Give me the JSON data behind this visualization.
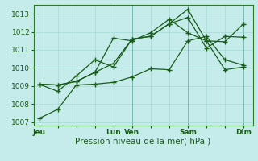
{
  "title": "",
  "xlabel": "Pression niveau de la mer( hPa )",
  "bg_color": "#c5ecea",
  "grid_color": "#a8d8d4",
  "line_color": "#1a5c1a",
  "spine_color": "#2a7a2a",
  "ylim": [
    1006.8,
    1013.5
  ],
  "yticks": [
    1007,
    1008,
    1009,
    1010,
    1011,
    1012,
    1013
  ],
  "xlim": [
    -0.3,
    11.5
  ],
  "xtick_labels": [
    "Jeu",
    "",
    "",
    "",
    "Lun",
    "Ven",
    "",
    "",
    "Sam",
    "",
    "",
    "Dim"
  ],
  "xtick_positions": [
    0,
    1,
    2,
    3,
    4,
    5,
    6,
    7,
    8,
    9,
    10,
    11
  ],
  "vline_positions": [
    4,
    5,
    8,
    11
  ],
  "line1_x": [
    0,
    1,
    2,
    3,
    4,
    5,
    6,
    7,
    8,
    9,
    10,
    11
  ],
  "line1_y": [
    1007.2,
    1007.7,
    1009.05,
    1009.1,
    1009.2,
    1009.5,
    1009.95,
    1009.9,
    1011.5,
    1011.75,
    1010.45,
    1010.15
  ],
  "line2_x": [
    0,
    1,
    2,
    3,
    4,
    5,
    6,
    7,
    8,
    9,
    10,
    11
  ],
  "line2_y": [
    1009.1,
    1008.7,
    1009.55,
    1010.45,
    1010.05,
    1011.6,
    1011.75,
    1012.45,
    1012.8,
    1011.1,
    1011.75,
    1011.7
  ],
  "line3_x": [
    0,
    1,
    2,
    3,
    4,
    5,
    6,
    7,
    8,
    9,
    10,
    11
  ],
  "line3_y": [
    1009.1,
    1009.05,
    1009.25,
    1009.75,
    1011.65,
    1011.5,
    1011.95,
    1012.7,
    1011.95,
    1011.5,
    1009.9,
    1010.05
  ],
  "line4_x": [
    0,
    1,
    2,
    3,
    4,
    5,
    6,
    7,
    8,
    9,
    10,
    11
  ],
  "line4_y": [
    1009.1,
    1009.05,
    1009.25,
    1009.75,
    1010.25,
    1011.6,
    1011.75,
    1012.45,
    1013.25,
    1011.5,
    1011.45,
    1012.45
  ],
  "marker": "+",
  "markersize": 4,
  "linewidth": 0.9,
  "fontsize_ticks": 6.5,
  "fontsize_xlabel": 7.5
}
